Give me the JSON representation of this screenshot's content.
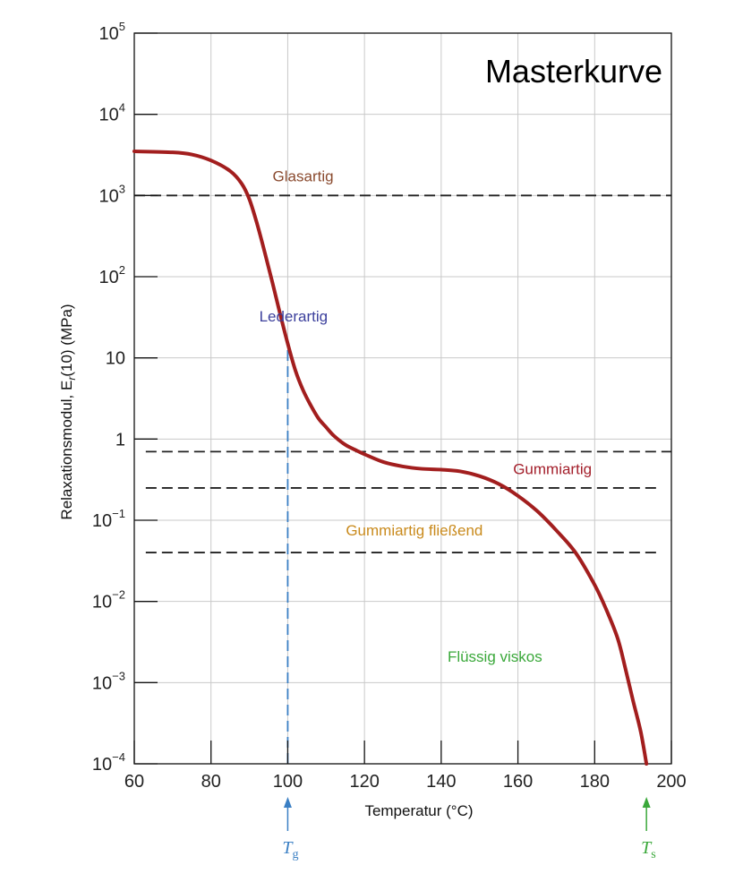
{
  "chart_data": {
    "type": "line",
    "title": "Masterkurve",
    "xlabel": "Temperatur (°C)",
    "ylabel": "Relaxationsmodul, E",
    "ylabel_sub": "r",
    "ylabel_suffix": "(10) (MPa)",
    "xlim": [
      60,
      200
    ],
    "ylim": [
      0.0001,
      100000
    ],
    "yscale": "log",
    "grid": true,
    "x_ticks": [
      "60",
      "80",
      "100",
      "120",
      "140",
      "160",
      "180",
      "200"
    ],
    "y_ticks": [
      {
        "base": "10",
        "exp": "5",
        "value": 100000
      },
      {
        "base": "10",
        "exp": "4",
        "value": 10000
      },
      {
        "base": "10",
        "exp": "3",
        "value": 1000
      },
      {
        "base": "10",
        "exp": "2",
        "value": 100
      },
      {
        "base": "10",
        "exp": "",
        "value": 10
      },
      {
        "base": "1",
        "exp": "",
        "value": 1
      },
      {
        "base": "10",
        "exp": "−1",
        "value": 0.1
      },
      {
        "base": "10",
        "exp": "−2",
        "value": 0.01
      },
      {
        "base": "10",
        "exp": "−3",
        "value": 0.001
      },
      {
        "base": "10",
        "exp": "−4",
        "value": 0.0001
      }
    ],
    "series": [
      {
        "color": "#a21e1e",
        "x": [
          60,
          70,
          75,
          80,
          85,
          88,
          90,
          92,
          94,
          96,
          98,
          100,
          102,
          104,
          106,
          108,
          110,
          112,
          115,
          118,
          120,
          125,
          130,
          135,
          140,
          145,
          150,
          155,
          160,
          165,
          170,
          175,
          180,
          183,
          186,
          188,
          190,
          192,
          193.5
        ],
        "y": [
          3500,
          3400,
          3200,
          2700,
          2000,
          1400,
          900,
          450,
          200,
          85,
          35,
          15,
          7,
          4,
          2.6,
          1.8,
          1.4,
          1.1,
          0.85,
          0.72,
          0.65,
          0.52,
          0.46,
          0.43,
          0.42,
          0.4,
          0.35,
          0.28,
          0.2,
          0.13,
          0.075,
          0.04,
          0.016,
          0.008,
          0.0035,
          0.0015,
          0.0006,
          0.00025,
          0.0001
        ]
      }
    ],
    "reference_lines": [
      {
        "type": "horizontal",
        "y": 1000,
        "x_from": 60,
        "x_to": 200,
        "color": "#222222",
        "dash": true
      },
      {
        "type": "horizontal",
        "y": 0.7,
        "x_from": 63,
        "x_to": 200,
        "color": "#222222",
        "dash": true
      },
      {
        "type": "horizontal",
        "y": 0.25,
        "x_from": 63,
        "x_to": 196,
        "color": "#222222",
        "dash": true
      },
      {
        "type": "horizontal",
        "y": 0.04,
        "x_from": 63,
        "x_to": 196,
        "color": "#222222",
        "dash": true
      },
      {
        "type": "vertical",
        "x": 100,
        "y_from": 0.0001,
        "y_to": 15,
        "color": "#3a7fc4",
        "dash": true
      }
    ],
    "annotations": [
      {
        "text": "Glasartig",
        "x": 104,
        "y": 1500,
        "color": "#8a4a2e"
      },
      {
        "text": "Lederartig",
        "x": 101.5,
        "y": 28,
        "color": "#3b3f9c"
      },
      {
        "text": "Gummiartig",
        "x": 169,
        "y": 0.37,
        "color": "#a31e2a"
      },
      {
        "text": "Gummiartig fließend",
        "x": 133,
        "y": 0.065,
        "color": "#c98a1c"
      },
      {
        "text": "Flüssig viskos",
        "x": 154,
        "y": 0.0018,
        "color": "#3aa83a"
      }
    ],
    "markers": [
      {
        "label": "T",
        "sub": "g",
        "x": 100,
        "color": "#3a7fc4"
      },
      {
        "label": "T",
        "sub": "s",
        "x": 193.5,
        "color": "#3aa83a"
      }
    ]
  }
}
